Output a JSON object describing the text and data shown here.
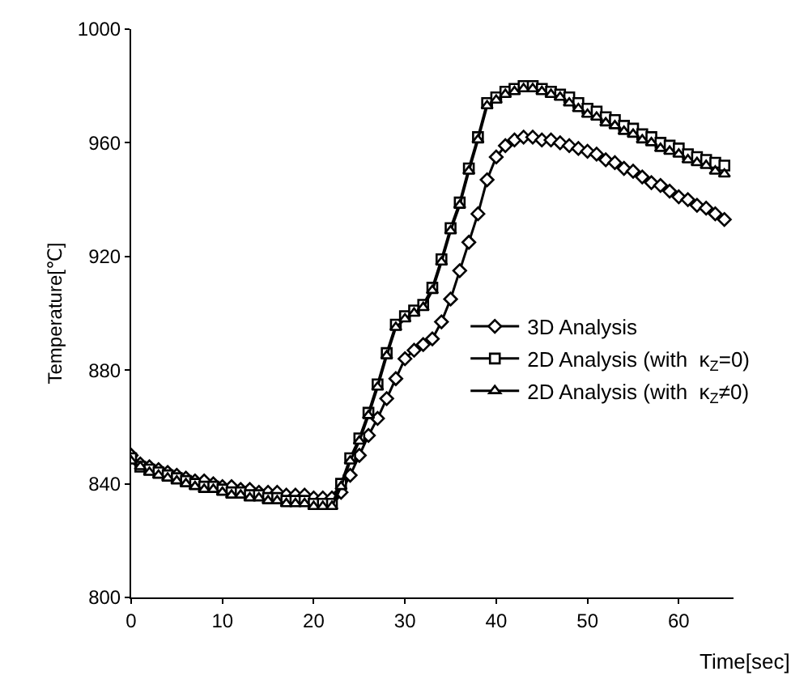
{
  "chart_data": {
    "type": "line",
    "xlabel": "Time[sec]",
    "ylabel": "Temperature[℃]",
    "x": [
      0,
      1,
      2,
      3,
      4,
      5,
      6,
      7,
      8,
      9,
      10,
      11,
      12,
      13,
      14,
      15,
      16,
      17,
      18,
      19,
      20,
      21,
      22,
      23,
      24,
      25,
      26,
      27,
      28,
      29,
      30,
      31,
      32,
      33,
      34,
      35,
      36,
      37,
      38,
      39,
      40,
      41,
      42,
      43,
      44,
      45,
      46,
      47,
      48,
      49,
      50,
      51,
      52,
      53,
      54,
      55,
      56,
      57,
      58,
      59,
      60,
      61,
      62,
      63,
      64,
      65
    ],
    "series": [
      {
        "name": "3D Analysis",
        "color": "#000000",
        "marker": "diamond",
        "values": [
          850,
          847,
          846,
          845,
          844,
          843,
          842,
          841,
          841,
          840,
          839,
          839,
          838,
          838,
          837,
          837,
          837,
          836,
          836,
          836,
          835,
          835,
          835,
          837,
          843,
          850,
          857,
          863,
          870,
          877,
          884,
          887,
          889,
          891,
          897,
          905,
          915,
          925,
          935,
          947,
          955,
          959,
          961,
          962,
          962,
          961,
          961,
          960,
          959,
          958,
          957,
          956,
          954,
          953,
          951,
          950,
          948,
          946,
          945,
          943,
          941,
          940,
          938,
          937,
          935,
          933
        ]
      },
      {
        "name": "2D Analysis (with  κ$_{Z}$=0)",
        "color": "#000000",
        "marker": "square",
        "values": [
          849,
          846,
          845,
          844,
          843,
          842,
          841,
          840,
          839,
          839,
          838,
          837,
          837,
          836,
          836,
          835,
          835,
          834,
          834,
          834,
          833,
          833,
          833,
          840,
          849,
          856,
          865,
          875,
          886,
          896,
          899,
          901,
          903,
          909,
          919,
          930,
          939,
          951,
          962,
          974,
          976,
          978,
          979,
          980,
          980,
          979,
          978,
          977,
          976,
          974,
          972,
          971,
          969,
          968,
          966,
          965,
          963,
          962,
          960,
          959,
          958,
          956,
          955,
          954,
          953,
          952
        ]
      },
      {
        "name": "2D Analysis (with  κ$_{Z}$≠0)",
        "color": "#000000",
        "marker": "triangle",
        "values": [
          848,
          846,
          844,
          843,
          842,
          841,
          840,
          839,
          838,
          838,
          837,
          836,
          836,
          835,
          835,
          834,
          834,
          833,
          833,
          833,
          832,
          832,
          832,
          839,
          848,
          855,
          864,
          874,
          885,
          895,
          898,
          900,
          902,
          908,
          918,
          929,
          938,
          950,
          961,
          973,
          975,
          977,
          978,
          979,
          979,
          978,
          977,
          976,
          974,
          972,
          970,
          969,
          967,
          966,
          964,
          963,
          961,
          960,
          958,
          957,
          956,
          954,
          953,
          952,
          950,
          949
        ]
      }
    ],
    "xlim": [
      0,
      66
    ],
    "xticks": [
      0,
      10,
      20,
      30,
      40,
      50,
      60
    ],
    "ylim": [
      800,
      1000
    ],
    "yticks": [
      800,
      840,
      880,
      920,
      960,
      1000
    ],
    "grid": false,
    "legend": "center right",
    "line_style": "solid"
  }
}
